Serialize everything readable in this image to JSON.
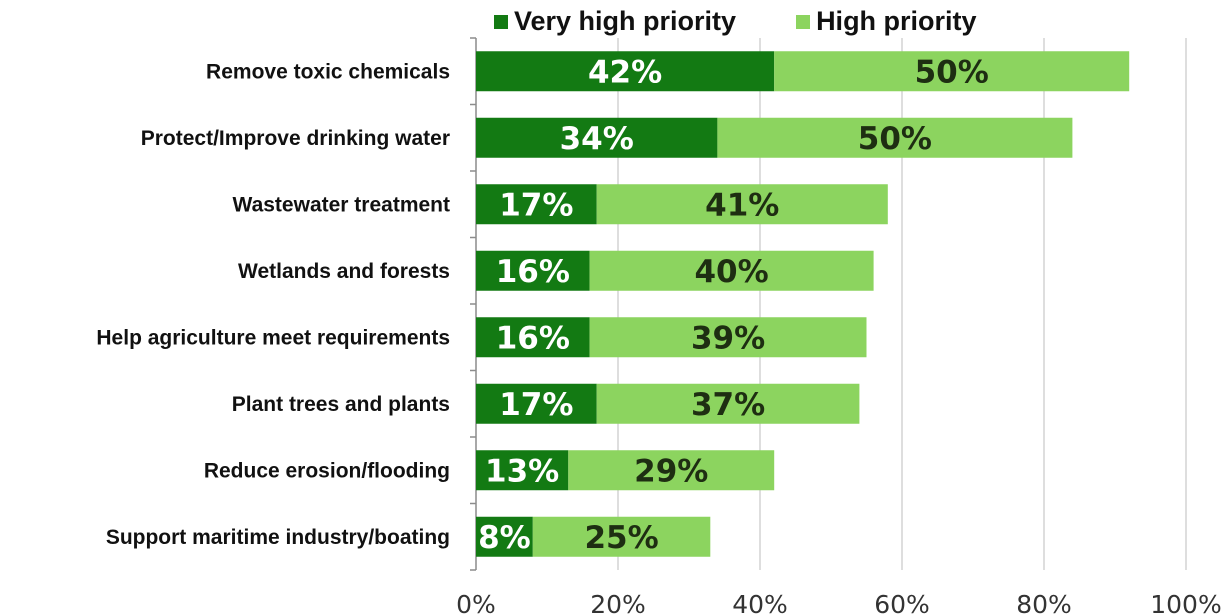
{
  "chart_data": {
    "type": "bar",
    "orientation": "horizontal",
    "stacked": true,
    "categories": [
      "Remove toxic chemicals",
      "Protect/Improve drinking water",
      "Wastewater treatment",
      "Wetlands and forests",
      "Help agriculture meet requirements",
      "Plant trees and plants",
      "Reduce erosion/flooding",
      "Support maritime industry/boating"
    ],
    "series": [
      {
        "name": "Very high priority",
        "color": "#137a13",
        "values": [
          42,
          34,
          17,
          16,
          16,
          17,
          13,
          8
        ],
        "labels": [
          "42%",
          "34%",
          "17%",
          "16%",
          "16%",
          "17%",
          "13%",
          "8%"
        ]
      },
      {
        "name": "High priority",
        "color": "#8cd45f",
        "values": [
          50,
          50,
          41,
          40,
          39,
          37,
          29,
          25
        ],
        "labels": [
          "50%",
          "50%",
          "41%",
          "40%",
          "39%",
          "37%",
          "29%",
          "25%"
        ]
      }
    ],
    "xlim": [
      0,
      100
    ],
    "xticks": [
      0,
      20,
      40,
      60,
      80,
      100
    ],
    "xtick_labels": [
      "0%",
      "20%",
      "40%",
      "60%",
      "80%",
      "100%"
    ],
    "grid": true,
    "legend_position": "top"
  }
}
